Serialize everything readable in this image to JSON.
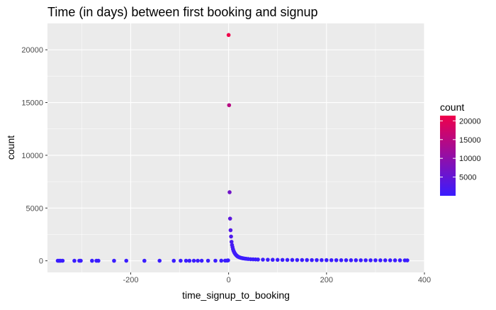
{
  "chart_data": {
    "type": "scatter",
    "title": "Time (in days) between first booking and signup",
    "xlabel": "time_signup_to_booking",
    "ylabel": "count",
    "xlim": [
      -370,
      400
    ],
    "ylim": [
      -1100,
      22500
    ],
    "x_ticks": [
      -200,
      0,
      200,
      400
    ],
    "x_tick_labels": [
      "-200",
      "0",
      "200",
      "400"
    ],
    "y_ticks": [
      0,
      5000,
      10000,
      15000,
      20000
    ],
    "y_tick_labels": [
      "0",
      "5000",
      "10000",
      "15000",
      "20000"
    ],
    "x_minor": [
      -300,
      -100,
      100,
      300
    ],
    "y_minor": [
      2500,
      7500,
      12500,
      17500
    ],
    "grid": true,
    "panel_background": "#ebebeb",
    "grid_color": "#ffffff",
    "color_scale": {
      "low": "#3a1cff",
      "high": "#f0004a",
      "min": 1,
      "max": 21400
    },
    "legend": {
      "title": "count",
      "position": "right",
      "breaks": [
        5000,
        10000,
        15000,
        20000
      ],
      "labels": [
        "5000",
        "10000",
        "15000",
        "20000"
      ]
    },
    "points": [
      [
        -349,
        5
      ],
      [
        -346,
        3
      ],
      [
        -343,
        4
      ],
      [
        -339,
        6
      ],
      [
        -315,
        3
      ],
      [
        -305,
        4
      ],
      [
        -302,
        5
      ],
      [
        -279,
        3
      ],
      [
        -270,
        4
      ],
      [
        -266,
        3
      ],
      [
        -234,
        3
      ],
      [
        -209,
        4
      ],
      [
        -172,
        3
      ],
      [
        -141,
        4
      ],
      [
        -112,
        3
      ],
      [
        -98,
        5
      ],
      [
        -87,
        4
      ],
      [
        -80,
        3
      ],
      [
        -71,
        5
      ],
      [
        -63,
        4
      ],
      [
        -55,
        6
      ],
      [
        -42,
        8
      ],
      [
        -27,
        10
      ],
      [
        -15,
        12
      ],
      [
        -7,
        18
      ],
      [
        -3,
        25
      ],
      [
        -1,
        40
      ],
      [
        0,
        21400
      ],
      [
        1,
        14750
      ],
      [
        2,
        6500
      ],
      [
        3,
        4000
      ],
      [
        4,
        2900
      ],
      [
        5,
        2300
      ],
      [
        6,
        1800
      ],
      [
        7,
        1500
      ],
      [
        8,
        1300
      ],
      [
        9,
        1100
      ],
      [
        10,
        950
      ],
      [
        11,
        850
      ],
      [
        12,
        760
      ],
      [
        13,
        680
      ],
      [
        14,
        620
      ],
      [
        15,
        560
      ],
      [
        16,
        510
      ],
      [
        17,
        470
      ],
      [
        18,
        430
      ],
      [
        19,
        400
      ],
      [
        20,
        370
      ],
      [
        22,
        330
      ],
      [
        24,
        300
      ],
      [
        26,
        270
      ],
      [
        28,
        250
      ],
      [
        30,
        230
      ],
      [
        33,
        210
      ],
      [
        36,
        190
      ],
      [
        40,
        170
      ],
      [
        45,
        150
      ],
      [
        50,
        140
      ],
      [
        55,
        130
      ],
      [
        60,
        120
      ],
      [
        70,
        110
      ],
      [
        80,
        100
      ],
      [
        90,
        95
      ],
      [
        100,
        90
      ],
      [
        110,
        85
      ],
      [
        120,
        80
      ],
      [
        130,
        78
      ],
      [
        140,
        75
      ],
      [
        150,
        72
      ],
      [
        160,
        70
      ],
      [
        170,
        68
      ],
      [
        180,
        66
      ],
      [
        190,
        64
      ],
      [
        200,
        62
      ],
      [
        210,
        60
      ],
      [
        220,
        58
      ],
      [
        230,
        56
      ],
      [
        240,
        55
      ],
      [
        250,
        54
      ],
      [
        260,
        53
      ],
      [
        270,
        52
      ],
      [
        280,
        51
      ],
      [
        290,
        50
      ],
      [
        300,
        49
      ],
      [
        310,
        48
      ],
      [
        320,
        47
      ],
      [
        330,
        46
      ],
      [
        340,
        45
      ],
      [
        350,
        44
      ],
      [
        360,
        43
      ],
      [
        365,
        42
      ]
    ]
  }
}
